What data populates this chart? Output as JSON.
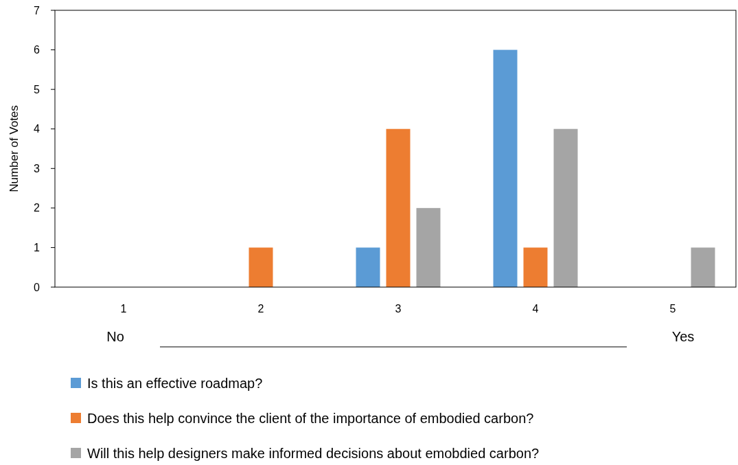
{
  "chart_data": {
    "type": "bar",
    "ylabel": "Number of Votes",
    "categories": [
      "1",
      "2",
      "3",
      "4",
      "5"
    ],
    "series": [
      {
        "name": "Is this an effective roadmap?",
        "color": "#5b9bd5",
        "values": [
          0,
          0,
          1,
          6,
          0
        ]
      },
      {
        "name": "Does this help convince the client of the importance of embodied carbon?",
        "color": "#ed7d31",
        "values": [
          0,
          1,
          4,
          1,
          0
        ]
      },
      {
        "name": "Will this help designers make informed decisions about emobdied carbon?",
        "color": "#a5a5a5",
        "values": [
          0,
          0,
          2,
          4,
          1
        ]
      }
    ],
    "ylim": [
      0,
      7
    ],
    "yticks": [
      0,
      1,
      2,
      3,
      4,
      5,
      6,
      7
    ],
    "legend": "bottom",
    "annotations": [
      "No",
      "Yes"
    ]
  }
}
